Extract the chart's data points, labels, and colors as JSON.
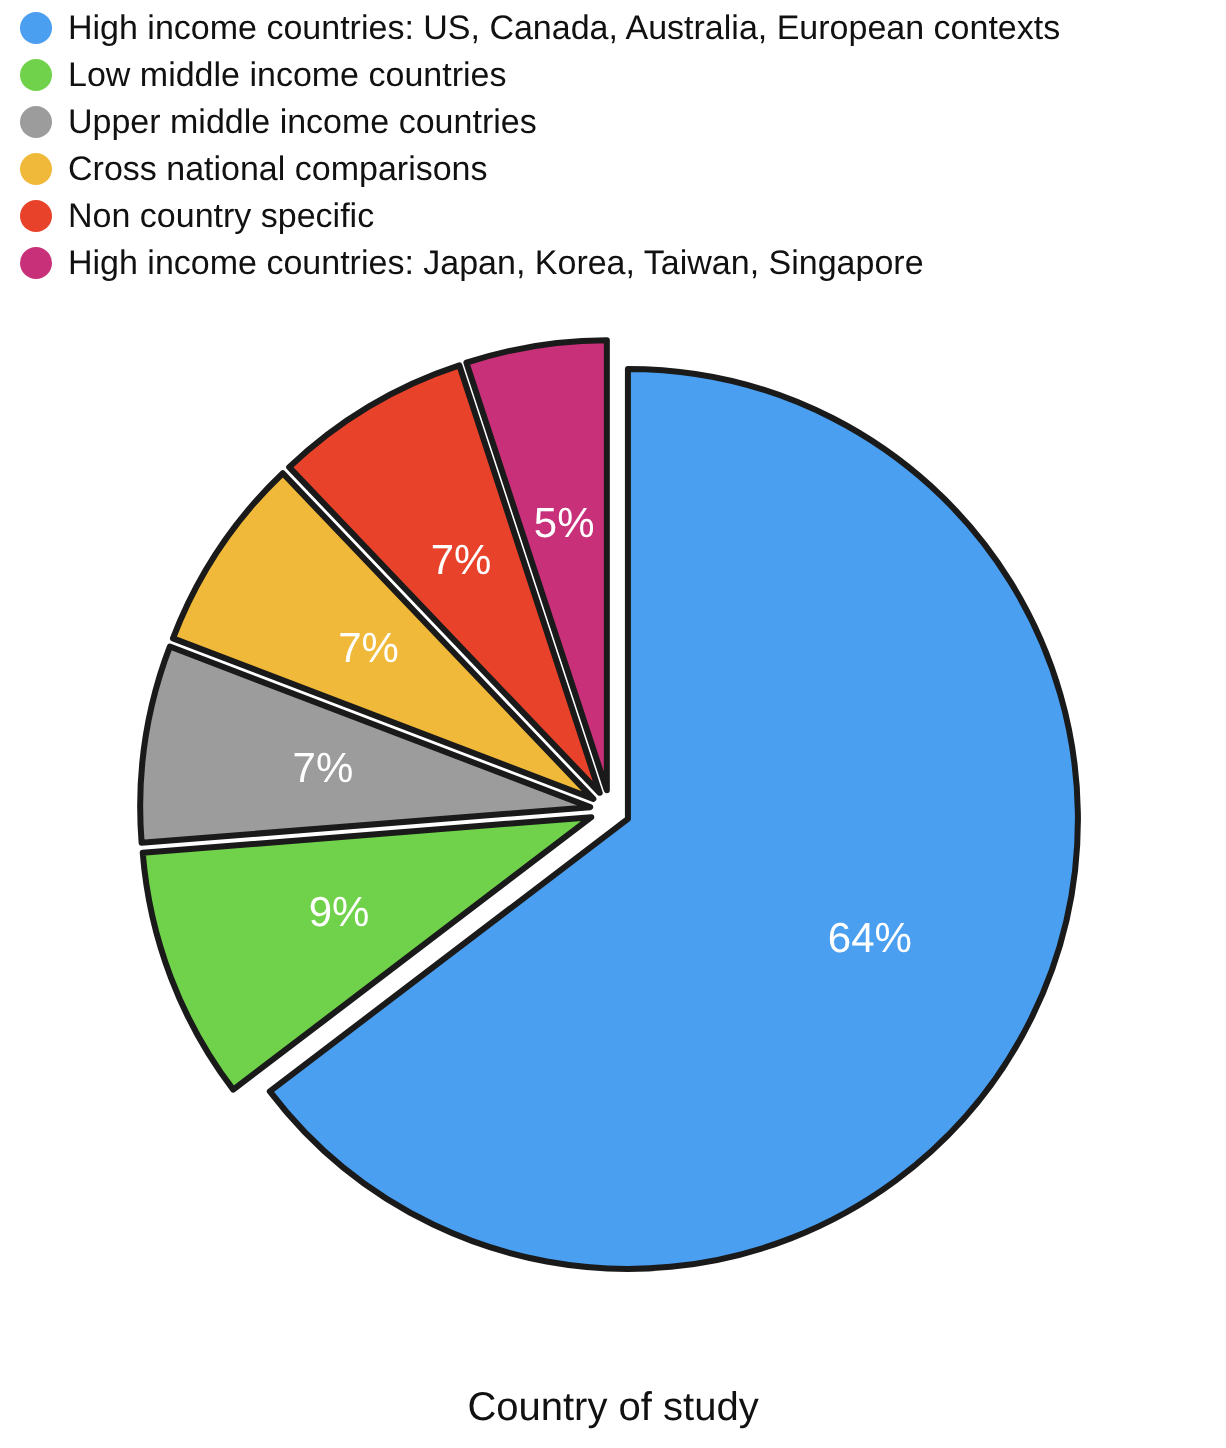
{
  "chart_data": {
    "type": "pie",
    "title": "Country of study",
    "categories": [
      "High income countries: US, Canada, Australia, European contexts",
      "Low middle income countries",
      "Upper middle income countries",
      "Cross national comparisons",
      "Non country specific",
      "High income countries: Japan, Korea, Taiwan, Singapore"
    ],
    "values": [
      64,
      9,
      7,
      7,
      7,
      5
    ],
    "colors": [
      "#4a9ff0",
      "#6fd24a",
      "#9c9c9c",
      "#f0b93a",
      "#e8432a",
      "#c8307a"
    ],
    "value_labels": [
      "64%",
      "9%",
      "7%",
      "7%",
      "7%",
      "5%"
    ],
    "legend": "top left"
  }
}
